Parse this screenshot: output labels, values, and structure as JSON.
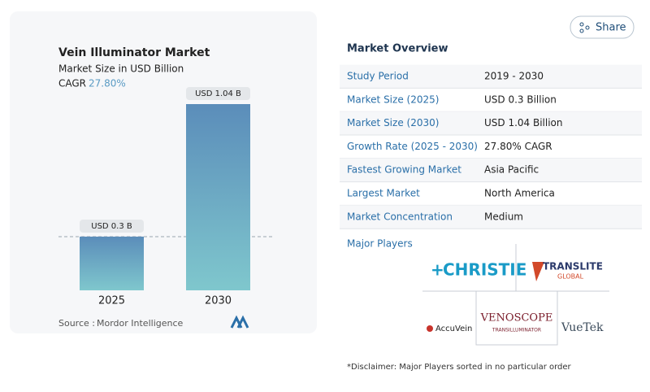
{
  "chart_data": {
    "type": "bar",
    "title": "Vein Illuminator Market",
    "subtitle": "Market Size in USD Billion",
    "cagr_label": "CAGR",
    "cagr_value": "27.80%",
    "categories": [
      "2025",
      "2030"
    ],
    "values": [
      0.3,
      1.04
    ],
    "value_labels": [
      "USD 0.3 B",
      "USD 1.04 B"
    ],
    "colors": [
      "#5b8dba",
      "#7fc7cd"
    ],
    "source_label": "Source :",
    "source": "Mordor Intelligence"
  },
  "share": "Share",
  "overview": {
    "title": "Market Overview",
    "rows": [
      [
        "Study Period",
        "2019 - 2030"
      ],
      [
        "Market Size (2025)",
        "USD 0.3 Billion"
      ],
      [
        "Market Size (2030)",
        "USD 1.04 Billion"
      ],
      [
        "Growth Rate (2025 - 2030)",
        "27.80% CAGR"
      ],
      [
        "Fastest Growing Market",
        "Asia Pacific"
      ],
      [
        "Largest Market",
        "North America"
      ],
      [
        "Market Concentration",
        "Medium"
      ]
    ]
  },
  "major_players": {
    "title": "Major Players",
    "christie": "CHRISTIE",
    "translite": "TRANSLITE",
    "translite_sub": "GLOBAL",
    "accuvein": "AccuVein",
    "venoscope": "VENOSCOPE",
    "venoscope_sub": "TRANSILLUMINATOR",
    "vuetek": "VueTek"
  },
  "disclaimer": "*Disclaimer: Major Players sorted in no particular order"
}
